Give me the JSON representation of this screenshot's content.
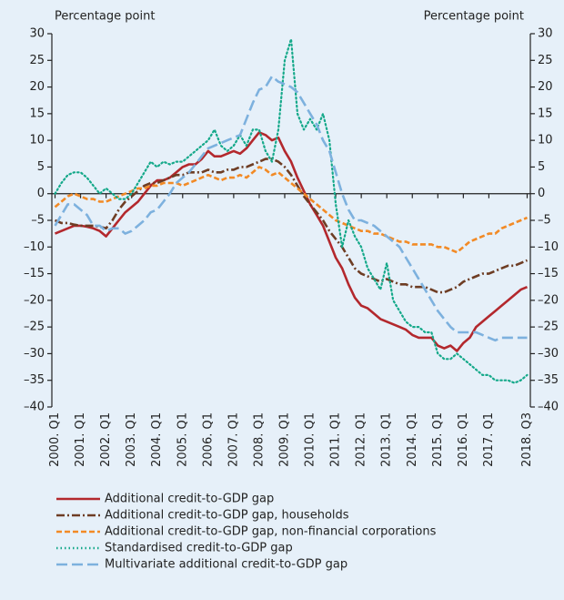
{
  "chart_data": {
    "type": "line",
    "ylabel": "Percentage point",
    "y2label": "Percentage point",
    "categories": [
      "2000. Q1",
      null,
      null,
      null,
      "2001. Q1",
      null,
      null,
      null,
      "2002. Q1",
      null,
      null,
      null,
      "2003. Q1",
      null,
      null,
      null,
      "2004. Q1",
      null,
      null,
      null,
      "2005. Q1",
      null,
      null,
      null,
      "2006. Q1",
      null,
      null,
      null,
      "2007. Q1",
      null,
      null,
      null,
      "2008. Q1",
      null,
      null,
      null,
      "2009. Q1",
      null,
      null,
      null,
      "2010. Q1",
      null,
      null,
      null,
      "2011. Q1",
      null,
      null,
      null,
      "2012. Q1",
      null,
      null,
      null,
      "2013. Q1",
      null,
      null,
      null,
      "2014. Q1",
      null,
      null,
      null,
      "2015. Q1",
      null,
      null,
      null,
      "2016. Q1",
      null,
      null,
      null,
      "2017. Q1",
      null,
      null,
      null,
      null,
      null,
      "2018. Q3"
    ],
    "ylim": [
      -40,
      30
    ],
    "yticks": [
      {
        "value": -40,
        "label": "–40"
      },
      {
        "value": -35,
        "label": "–35"
      },
      {
        "value": -30,
        "label": "–30"
      },
      {
        "value": -25,
        "label": "–25"
      },
      {
        "value": -20,
        "label": "–20"
      },
      {
        "value": -15,
        "label": "–15"
      },
      {
        "value": -10,
        "label": "–10"
      },
      {
        "value": -5,
        "label": "–5"
      },
      0,
      5,
      10,
      15,
      20,
      25,
      30
    ],
    "y2lim": [
      -40,
      30
    ],
    "y2ticks": [
      {
        "value": -40,
        "label": "–40"
      },
      {
        "value": -35,
        "label": "–35"
      },
      {
        "value": -30,
        "label": "–30"
      },
      {
        "value": -25,
        "label": "–25"
      },
      {
        "value": -20,
        "label": "–20"
      },
      {
        "value": -15,
        "label": "–15"
      },
      {
        "value": -10,
        "label": "–10"
      },
      {
        "value": -5,
        "label": "–5"
      },
      0,
      5,
      10,
      15,
      20,
      25,
      30
    ],
    "series": [
      {
        "name": "Additional credit-to-GDP gap",
        "color": "#b3282d",
        "style": "solid",
        "values": [
          -7.5,
          -7,
          -6.5,
          -6,
          -6,
          -6.2,
          -6.5,
          -7,
          -8,
          -6.5,
          -5,
          -3.5,
          -2.5,
          -1.5,
          0,
          1.5,
          2.5,
          2.5,
          3,
          4,
          5,
          5.5,
          5.5,
          6.5,
          8,
          7,
          7,
          7.5,
          8,
          7.5,
          8.5,
          10,
          11.5,
          11,
          10,
          10.5,
          8,
          6,
          3,
          0.5,
          -2,
          -4,
          -6,
          -9,
          -12,
          -14,
          -17,
          -19.5,
          -21,
          -21.5,
          -22.5,
          -23.5,
          -24,
          -24.5,
          -25,
          -25.5,
          -26.5,
          -27,
          -27,
          -27,
          -28.5,
          -29,
          -28.5,
          -29.5,
          -28,
          -27,
          -25,
          -24,
          -23,
          -22,
          -21,
          -20,
          -19,
          -18,
          -17.5
        ]
      },
      {
        "name": "Additional credit-to-GDP gap, households",
        "color": "#6e3d24",
        "style": "dashdot",
        "values": [
          -5,
          -5.5,
          -5.5,
          -5.8,
          -6,
          -6,
          -6,
          -6.2,
          -6.5,
          -5,
          -3,
          -1.5,
          -0.5,
          0.5,
          1.5,
          2,
          2,
          2.5,
          3,
          3.5,
          3.5,
          4,
          4,
          4,
          4.5,
          4,
          4,
          4.5,
          4.5,
          5,
          5,
          5.5,
          6,
          6.5,
          6.5,
          6,
          5,
          3.5,
          1.5,
          -0.5,
          -2,
          -3.5,
          -5,
          -7,
          -8.5,
          -10,
          -12,
          -14,
          -15,
          -15.5,
          -16,
          -16.5,
          -16,
          -16.5,
          -17,
          -17,
          -17.5,
          -17.5,
          -17.5,
          -18,
          -18.5,
          -18.5,
          -18,
          -17.5,
          -16.5,
          -16,
          -15.5,
          -15,
          -15,
          -14.5,
          -14,
          -13.5,
          -13.5,
          -13,
          -12.5
        ]
      },
      {
        "name": "Additional credit-to-GDP gap, non-financial corporations",
        "color": "#f28a25",
        "style": "dash",
        "values": [
          -2.5,
          -1.5,
          -0.5,
          0,
          -0.5,
          -1,
          -1,
          -1.5,
          -1.5,
          -1,
          -0.5,
          0,
          0.5,
          1,
          1,
          1.5,
          1.5,
          2,
          2,
          2,
          1.5,
          2,
          2.5,
          3,
          3.5,
          3,
          2.5,
          3,
          3,
          3.5,
          3,
          4,
          5,
          4.5,
          3.5,
          4,
          3,
          2,
          1,
          0,
          -1,
          -2,
          -3,
          -4,
          -5,
          -5.5,
          -6,
          -6.5,
          -7,
          -7,
          -7.5,
          -7.5,
          -8,
          -8.5,
          -9,
          -9,
          -9.5,
          -9.5,
          -9.5,
          -9.5,
          -10,
          -10,
          -10.5,
          -11,
          -10,
          -9,
          -8.5,
          -8,
          -7.5,
          -7.5,
          -6.5,
          -6,
          -5.5,
          -5,
          -4.5
        ]
      },
      {
        "name": "Standardised credit-to-GDP gap",
        "color": "#15a98a",
        "style": "dot",
        "values": [
          0,
          2,
          3.5,
          4,
          4,
          3,
          1.5,
          0,
          1,
          0,
          -1,
          -1,
          0,
          2,
          4,
          6,
          5,
          6,
          5.5,
          6,
          6,
          7,
          8,
          9,
          10,
          12,
          9,
          8,
          9,
          11,
          9,
          12,
          12,
          8,
          6,
          12,
          25,
          29,
          15,
          12,
          14,
          12,
          15,
          10,
          -2,
          -10,
          -5,
          -8,
          -10,
          -14,
          -16,
          -18,
          -13,
          -20,
          -22,
          -24,
          -25,
          -25,
          -26,
          -26,
          -30,
          -31,
          -31,
          -30,
          -31,
          -32,
          -33,
          -34,
          -34,
          -35,
          -35,
          -35,
          -35.5,
          -35,
          -34
        ]
      },
      {
        "name": "Multivariate additional credit-to-GDP gap",
        "color": "#7db1de",
        "style": "longdash",
        "values": [
          -6,
          -4,
          -2,
          -2,
          -3,
          -4,
          -6,
          -6,
          -7,
          -6.5,
          -6.5,
          -7.5,
          -7,
          -6,
          -5,
          -3.5,
          -3,
          -1.5,
          0,
          2,
          3,
          4,
          5.5,
          7,
          8.5,
          9,
          9.5,
          10,
          10.5,
          11,
          14,
          17,
          19.5,
          20,
          22,
          21,
          20.5,
          20,
          19,
          17,
          15,
          13,
          10,
          8,
          4,
          0,
          -3,
          -5,
          -5,
          -5.5,
          -6,
          -7,
          -8,
          -9,
          -10,
          -12,
          -14,
          -16,
          -18,
          -20,
          -22,
          -23.5,
          -25,
          -26,
          -26,
          -26,
          -26,
          -26.5,
          -27,
          -27.5,
          -27,
          -27,
          -27,
          -27,
          -27
        ]
      }
    ]
  }
}
